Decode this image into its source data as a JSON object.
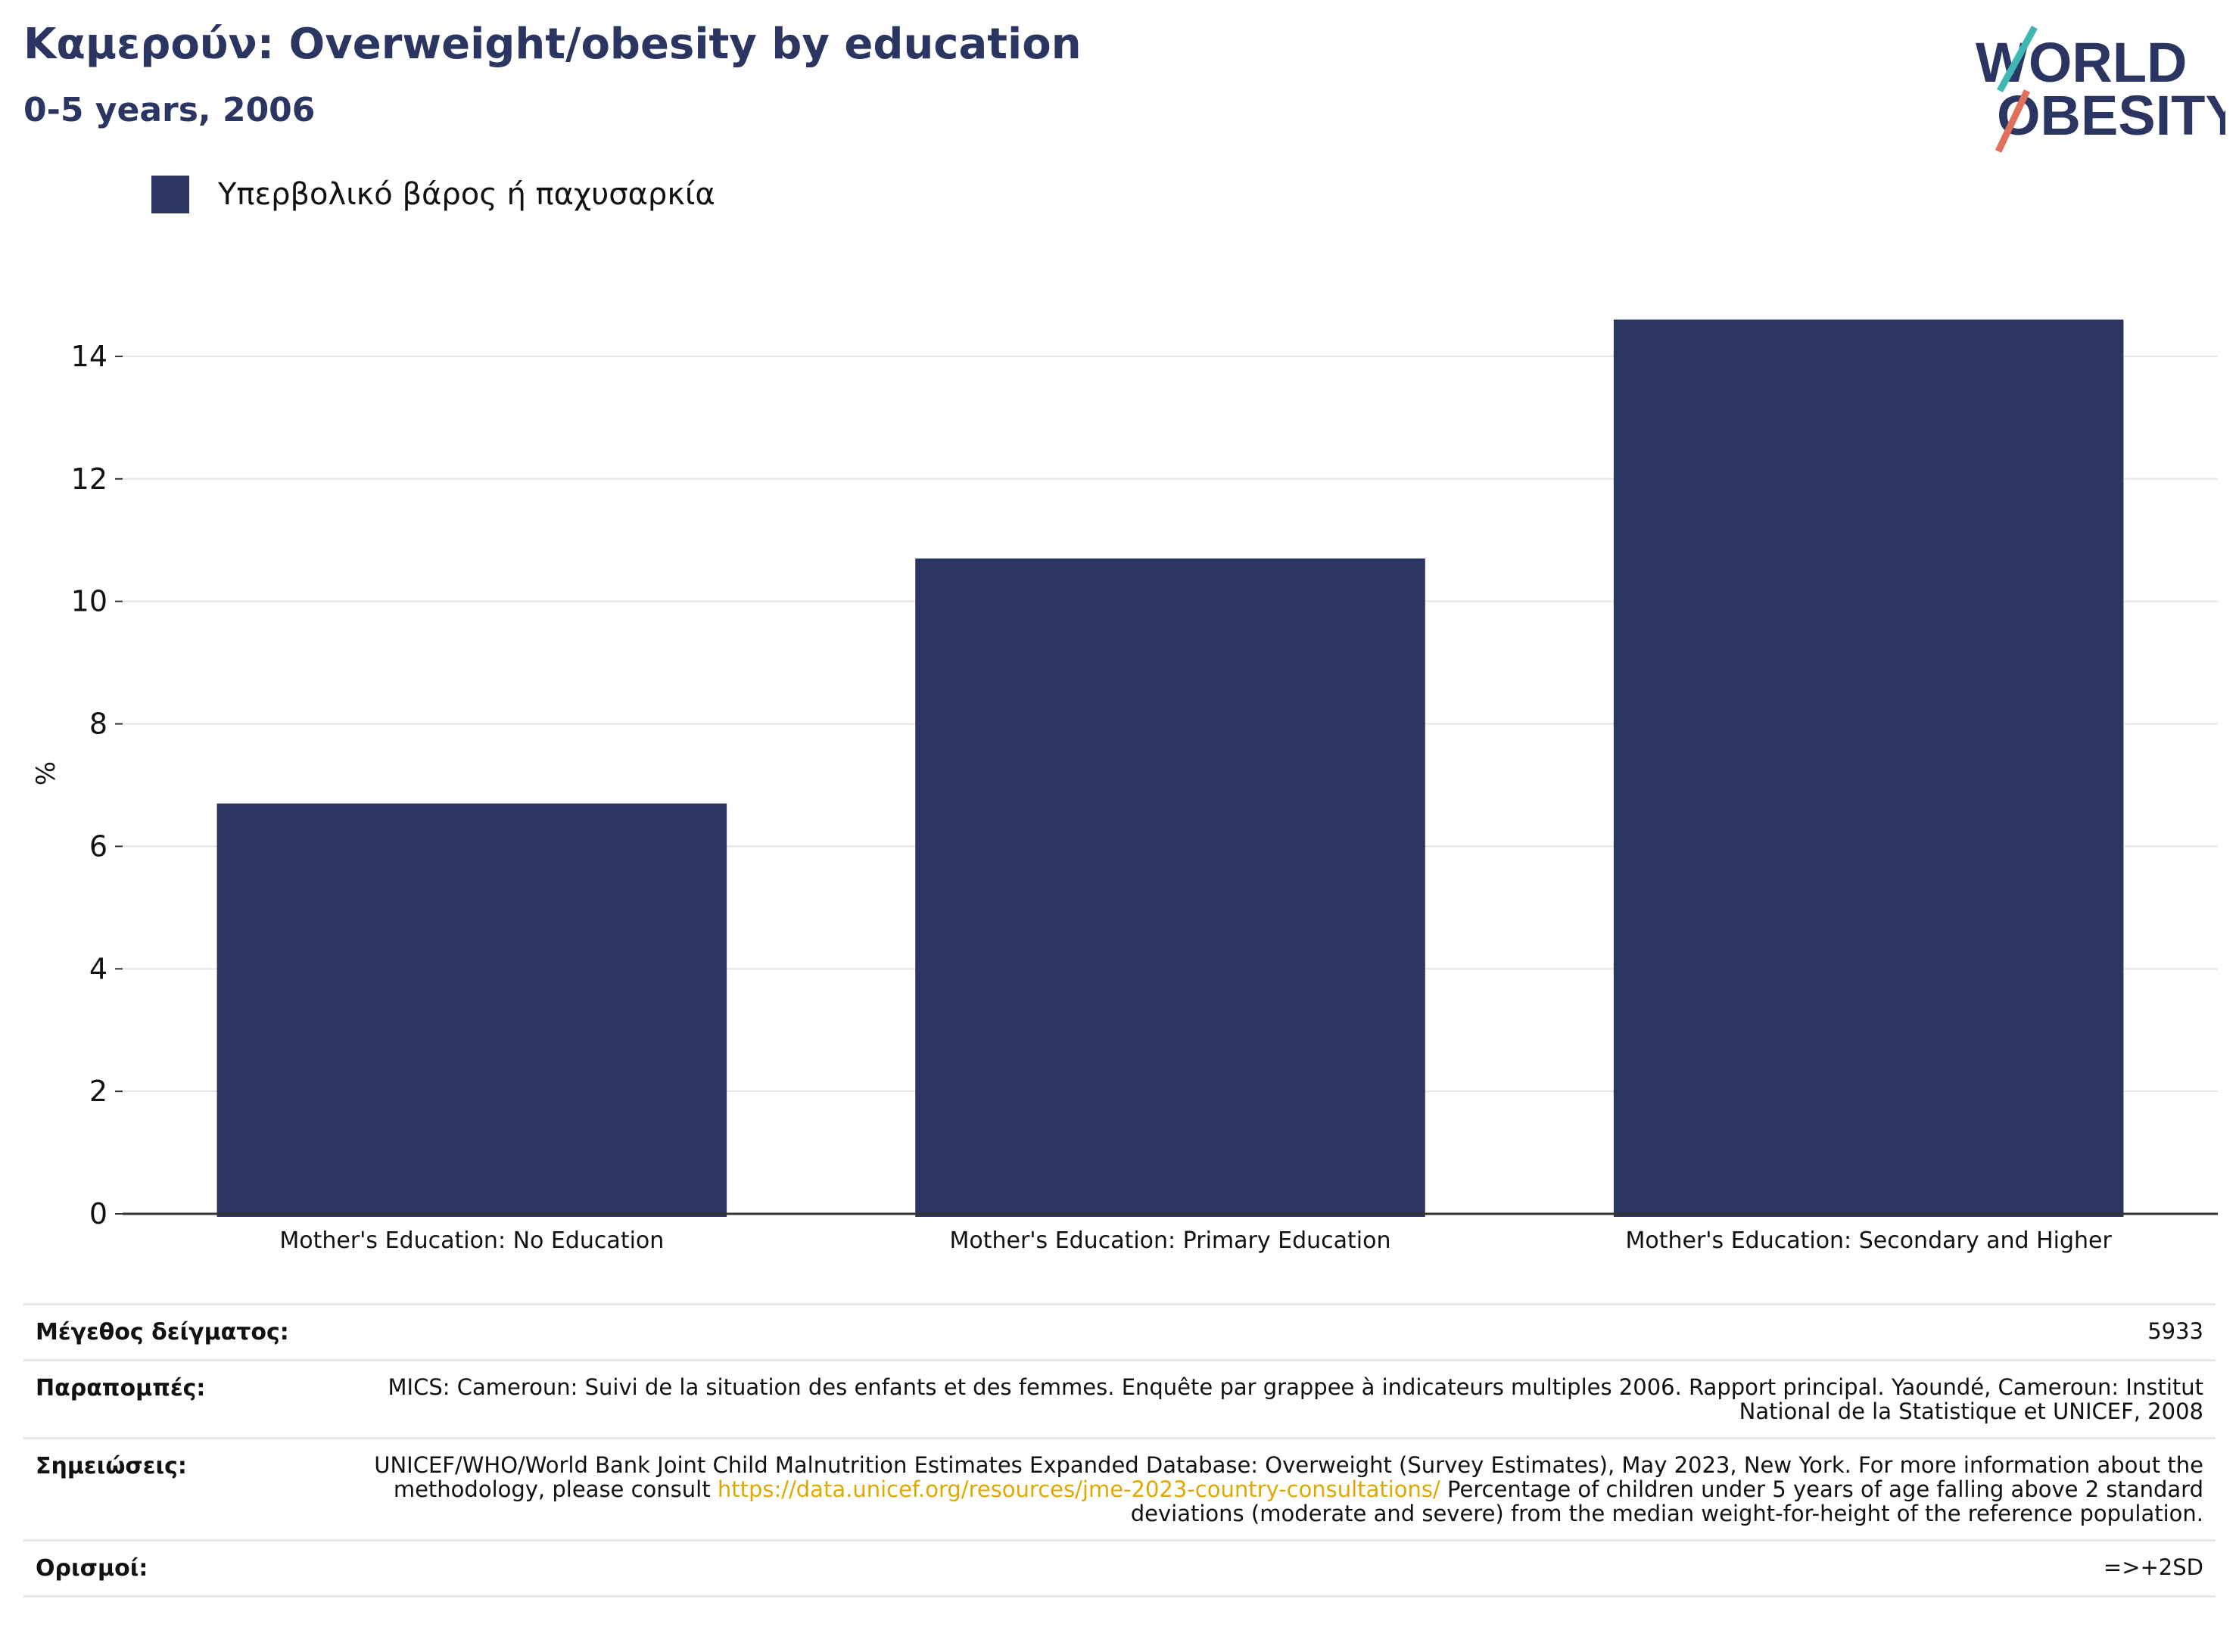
{
  "header": {
    "title": "Καμερούν: Overweight/obesity by education",
    "subtitle": "0-5 years, 2006"
  },
  "logo": {
    "line1": "WORLD",
    "line2": "OBESITY"
  },
  "legend": {
    "label": "Υπερβολικό βάρος ή παχυσαρκία"
  },
  "colors": {
    "bar": "#2a3561",
    "accent": "#2a3561",
    "link": "#e0a800"
  },
  "chart_data": {
    "type": "bar",
    "categories": [
      "Mother's Education: No Education",
      "Mother's Education: Primary Education",
      "Mother's Education: Secondary and Higher"
    ],
    "series": [
      {
        "name": "Υπερβολικό βάρος ή παχυσαρκία",
        "values": [
          6.7,
          10.7,
          14.6
        ]
      }
    ],
    "ylabel": "%",
    "ylim": [
      0,
      15
    ],
    "yticks": [
      0,
      2,
      4,
      6,
      8,
      10,
      12,
      14
    ],
    "grid": true,
    "legend": "top-left"
  },
  "meta": {
    "sample_label": "Μέγεθος δείγματος:",
    "sample_value": "5933",
    "refs_label": "Παραπομπές:",
    "refs_value": "MICS: Cameroun: Suivi de la situation des enfants et des femmes. Enquête par grappee à indicateurs multiples 2006. Rapport principal. Yaoundé, Cameroun: Institut National de la Statistique et UNICEF, 2008",
    "notes_label": "Σημειώσεις:",
    "notes_before": "UNICEF/WHO/World Bank Joint Child Malnutrition Estimates Expanded Database: Overweight (Survey Estimates), May 2023, New York. For more information about the methodology, please consult ",
    "notes_link": "https://data.unicef.org/resources/jme-2023-country-consultations/",
    "notes_after": " Percentage of children under 5 years of age falling above 2 standard deviations (moderate and severe) from the median weight-for-height of the reference population.",
    "defs_label": "Ορισμοί:",
    "defs_value": "=>+2SD"
  }
}
